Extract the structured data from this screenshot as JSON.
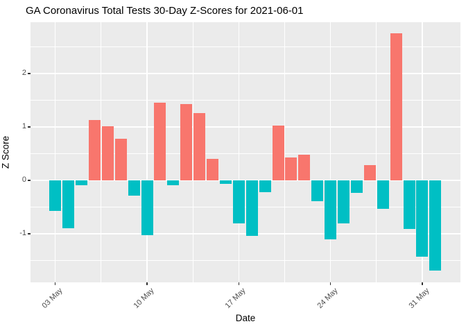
{
  "chart_data": {
    "type": "bar",
    "title": "GA Coronavirus Total Tests 30-Day Z-Scores for 2021-06-01",
    "xlabel": "Date",
    "ylabel": "Z Score",
    "categories": [
      "2021-05-03",
      "2021-05-04",
      "2021-05-05",
      "2021-05-06",
      "2021-05-07",
      "2021-05-08",
      "2021-05-09",
      "2021-05-10",
      "2021-05-11",
      "2021-05-12",
      "2021-05-13",
      "2021-05-14",
      "2021-05-15",
      "2021-05-16",
      "2021-05-17",
      "2021-05-18",
      "2021-05-19",
      "2021-05-20",
      "2021-05-21",
      "2021-05-22",
      "2021-05-23",
      "2021-05-24",
      "2021-05-25",
      "2021-05-26",
      "2021-05-27",
      "2021-05-28",
      "2021-05-29",
      "2021-05-30",
      "2021-05-31",
      "2021-06-01"
    ],
    "values": [
      -0.57,
      -0.9,
      -0.09,
      1.13,
      1.01,
      0.78,
      -0.29,
      -1.03,
      1.45,
      -0.09,
      1.43,
      1.26,
      0.4,
      -0.06,
      -0.8,
      -1.04,
      -0.22,
      1.02,
      0.43,
      0.48,
      -0.39,
      -1.1,
      -0.81,
      -0.24,
      0.29,
      -0.53,
      2.75,
      -0.91,
      -1.43,
      -1.69
    ],
    "x_ticks": [
      {
        "index": 0,
        "label": "03 May"
      },
      {
        "index": 7,
        "label": "10 May"
      },
      {
        "index": 14,
        "label": "17 May"
      },
      {
        "index": 21,
        "label": "24 May"
      },
      {
        "index": 28,
        "label": "31 May"
      }
    ],
    "x_minor": [
      3.5,
      10.5,
      17.5,
      24.5
    ],
    "y_ticks": [
      {
        "value": 2,
        "label": "2"
      },
      {
        "value": 1,
        "label": "1"
      },
      {
        "value": 0,
        "label": "0"
      },
      {
        "value": -1,
        "label": "-1"
      }
    ],
    "y_minor": [
      2.5,
      1.5,
      0.5,
      -0.5,
      -1.5
    ],
    "ylim": [
      -1.91,
      2.96
    ],
    "xlim": [
      -1.89,
      30.91
    ],
    "bar_width_ratio": 0.9,
    "grid": true,
    "legend": null,
    "colors": {
      "positive_bar": "#F8766D",
      "negative_bar": "#00BFC4",
      "panel_background": "#EBEBEB",
      "gridline": "#FFFFFF",
      "tick_text": "#4D4D4D",
      "tick_mark": "#333333",
      "title_text": "#000000"
    }
  }
}
